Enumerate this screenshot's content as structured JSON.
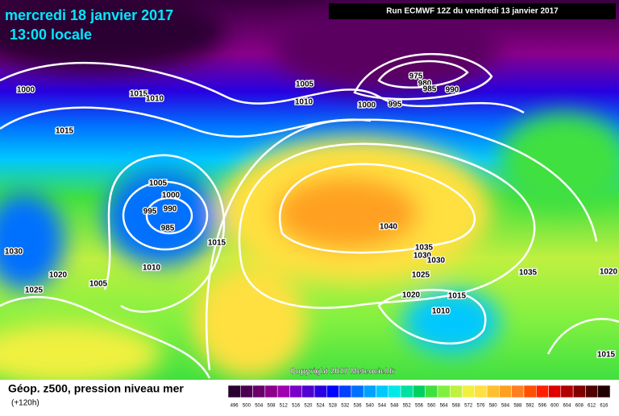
{
  "title": "mercredi 18 janvier 2017",
  "subtitle": "13:00 locale",
  "run_info": "Run ECMWF 12Z du vendredi 13 janvier 2017",
  "copyright": "Copyright 2017 Meteociel.fr",
  "legend": {
    "title": "Géop. z500, pression niveau mer",
    "lead_time": "(+120h)"
  },
  "isobar_labels": [
    1000,
    1015,
    1010,
    1015,
    1005,
    1010,
    1000,
    995,
    975,
    980,
    985,
    990,
    1005,
    1000,
    995,
    990,
    985,
    1015,
    1010,
    1030,
    1020,
    1005,
    1025,
    1040,
    1035,
    1030,
    1030,
    1025,
    1035,
    1020,
    1015,
    1010,
    1020,
    1015
  ],
  "colorbar": {
    "values": [
      496,
      500,
      504,
      508,
      512,
      516,
      520,
      524,
      528,
      532,
      536,
      540,
      544,
      548,
      552,
      556,
      560,
      564,
      568,
      572,
      576,
      580,
      584,
      588,
      592,
      596,
      600,
      604,
      608,
      612,
      616
    ],
    "colors": [
      "#2a0030",
      "#4b0050",
      "#6a006a",
      "#8a008a",
      "#a000b0",
      "#7a00c8",
      "#5000d0",
      "#2800e0",
      "#0000ff",
      "#0040ff",
      "#0070ff",
      "#00a0ff",
      "#00c8ff",
      "#00e8e8",
      "#00e0a0",
      "#00d060",
      "#40e040",
      "#80f040",
      "#c0f040",
      "#f0f040",
      "#ffe040",
      "#ffc030",
      "#ffa020",
      "#ff8020",
      "#ff5000",
      "#ff2000",
      "#e00000",
      "#b00000",
      "#800000",
      "#500000",
      "#200000"
    ]
  }
}
